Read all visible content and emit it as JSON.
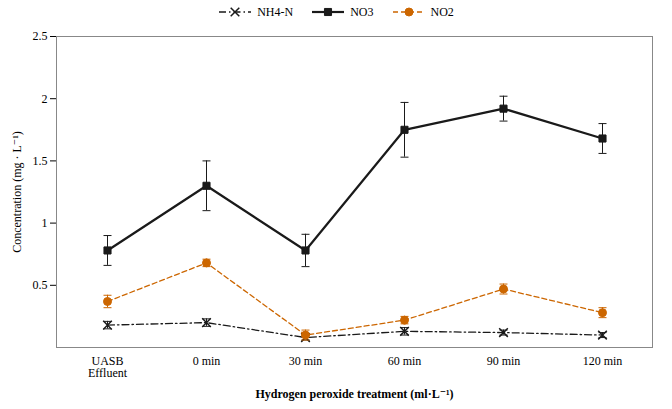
{
  "chart_data": {
    "type": "line",
    "xlabel": "Hydrogen peroxide treatment (ml·L⁻¹)",
    "ylabel": "Concentration (mg · L⁻¹)",
    "categories": [
      "UASB\nEffluent",
      "0 min",
      "30 min",
      "60 min",
      "90 min",
      "120 min"
    ],
    "series": [
      {
        "name": "NH4-N",
        "color": "#1a1a1a",
        "marker": "x",
        "line_style": "dashdot",
        "values": [
          0.18,
          0.2,
          0.08,
          0.13,
          0.12,
          0.1
        ],
        "errors": [
          0.03,
          0.03,
          0.02,
          0.03,
          0.02,
          0.02
        ]
      },
      {
        "name": "NO3",
        "color": "#1a1a1a",
        "marker": "square",
        "line_style": "solid",
        "values": [
          0.78,
          1.3,
          0.78,
          1.75,
          1.92,
          1.68
        ],
        "errors": [
          0.12,
          0.2,
          0.13,
          0.22,
          0.1,
          0.12
        ]
      },
      {
        "name": "NO2",
        "color": "#cc6600",
        "marker": "circle",
        "line_style": "dashed",
        "values": [
          0.37,
          0.68,
          0.1,
          0.22,
          0.47,
          0.28
        ],
        "errors": [
          0.05,
          0.03,
          0.04,
          0.03,
          0.04,
          0.04
        ]
      }
    ],
    "ylim": [
      0,
      2.5
    ],
    "yticks": [
      0.5,
      1,
      1.5,
      2,
      2.5
    ],
    "legend": "top"
  }
}
